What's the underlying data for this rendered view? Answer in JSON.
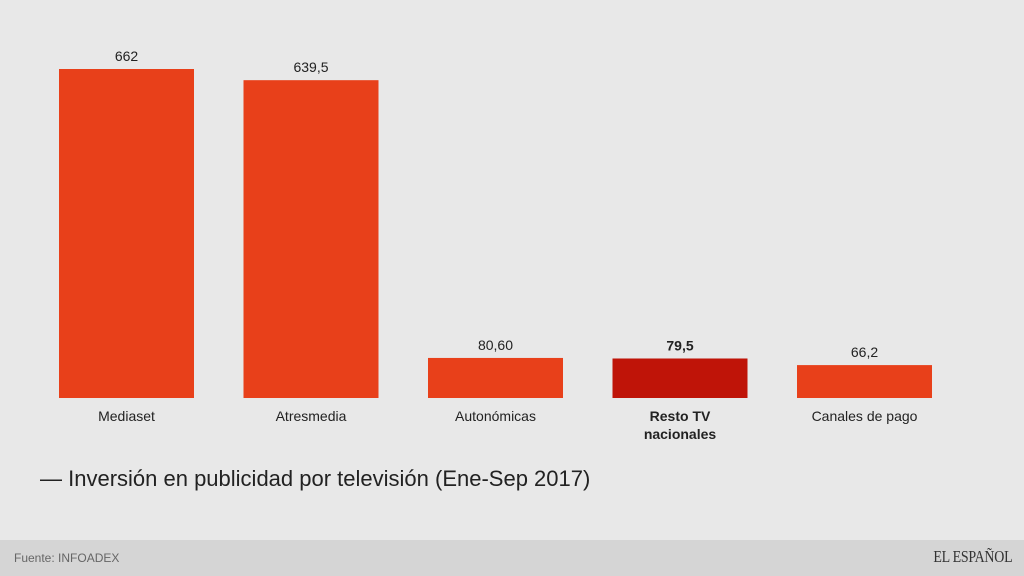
{
  "chart_data": {
    "type": "bar",
    "title": "— Inversión en publicidad por televisión (Ene-Sep 2017)",
    "xlabel": "",
    "ylabel": "",
    "ylim": [
      0,
      700
    ],
    "grid": false,
    "categories": [
      "Mediaset",
      "Atresmedia",
      "Autonómicas",
      "Resto TV nacionales",
      "Canales de pago"
    ],
    "category_lines": [
      [
        "Mediaset"
      ],
      [
        "Atresmedia"
      ],
      [
        "Autonómicas"
      ],
      [
        "Resto TV",
        "nacionales"
      ],
      [
        "Canales de pago"
      ]
    ],
    "values": [
      662,
      639.5,
      80.6,
      79.5,
      66.2
    ],
    "value_labels": [
      "662",
      "639,5",
      "80,60",
      "79,5",
      "66,2"
    ],
    "highlight_index": 3,
    "colors": {
      "bar": "#e8401a",
      "highlight": "#bf1408"
    }
  },
  "footer": {
    "source": "Fuente: INFOADEX",
    "brand": "EL ESPAÑOL"
  }
}
